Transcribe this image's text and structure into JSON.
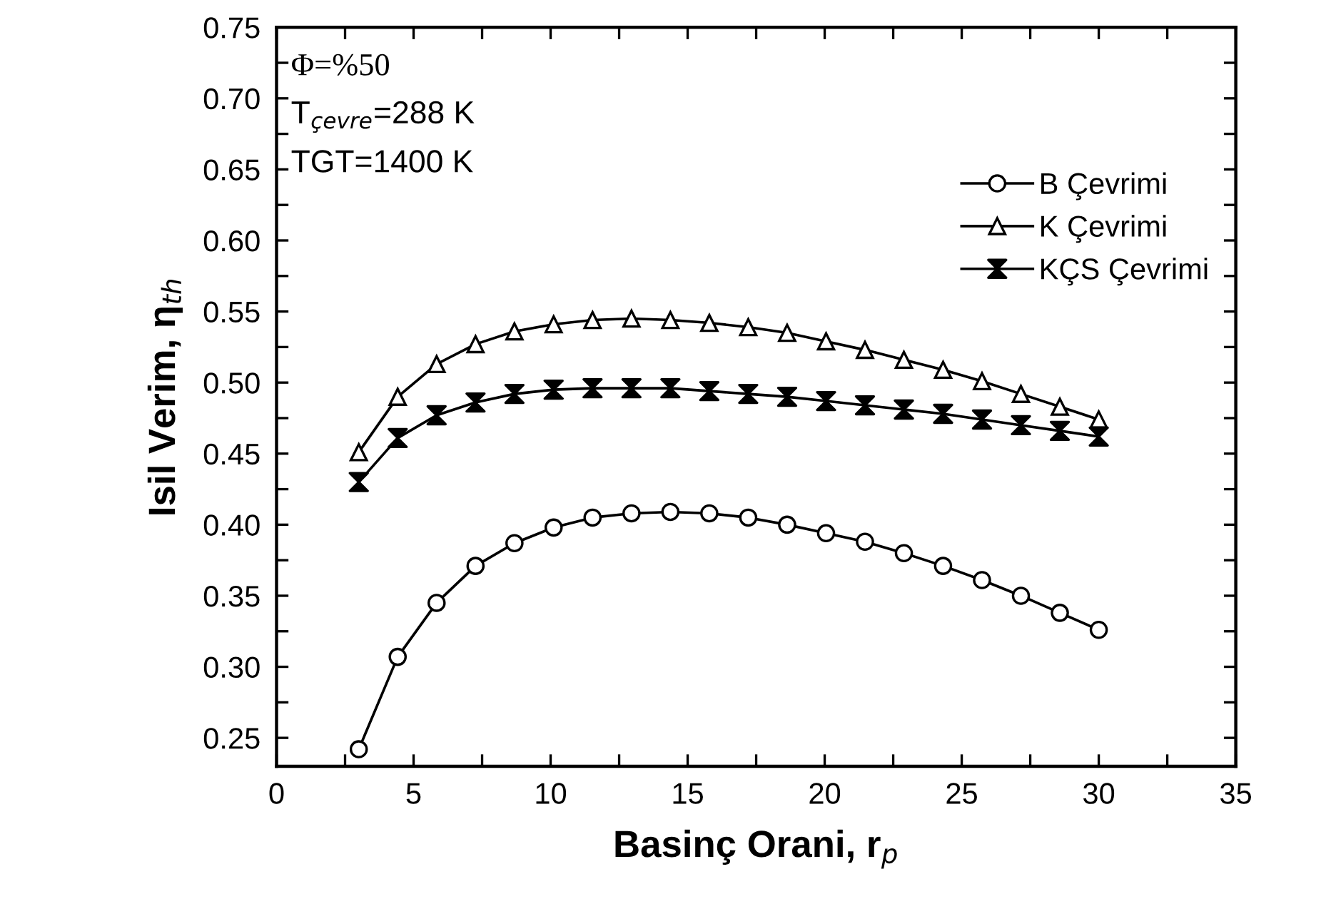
{
  "chart_data": {
    "type": "line",
    "xlabel": "Basinç Orani, r$_{p}$",
    "ylabel": "Isil Verim, η$_{th}$",
    "annotations": [
      "Φ=%50",
      "T$_{çevre}$=288 K",
      "TGT=1400 K"
    ],
    "x": [
      3,
      4.42,
      5.84,
      7.26,
      8.68,
      10.11,
      11.53,
      12.95,
      14.37,
      15.79,
      17.21,
      18.63,
      20.05,
      21.47,
      22.89,
      24.32,
      25.74,
      27.16,
      28.58,
      30
    ],
    "series": [
      {
        "name": "B Çevrimi",
        "color": "#000000",
        "marker": "circle",
        "values": [
          0.242,
          0.307,
          0.345,
          0.371,
          0.387,
          0.398,
          0.405,
          0.408,
          0.409,
          0.408,
          0.405,
          0.4,
          0.394,
          0.388,
          0.38,
          0.371,
          0.361,
          0.35,
          0.338,
          0.326
        ]
      },
      {
        "name": "K Çevrimi",
        "color": "#000000",
        "marker": "triangle",
        "values": [
          0.451,
          0.49,
          0.513,
          0.527,
          0.536,
          0.541,
          0.544,
          0.545,
          0.544,
          0.542,
          0.539,
          0.535,
          0.529,
          0.523,
          0.516,
          0.509,
          0.501,
          0.492,
          0.483,
          0.474
        ]
      },
      {
        "name": "KÇS Çevrimi",
        "color": "#000000",
        "marker": "cross",
        "values": [
          0.43,
          0.461,
          0.477,
          0.486,
          0.492,
          0.495,
          0.496,
          0.496,
          0.496,
          0.494,
          0.492,
          0.49,
          0.487,
          0.484,
          0.481,
          0.478,
          0.474,
          0.47,
          0.466,
          0.462
        ]
      }
    ],
    "xlim": [
      0,
      35
    ],
    "xticks": [
      0,
      {
        "value": 2.5,
        "label": null
      },
      5,
      {
        "value": 7.5,
        "label": null
      },
      10,
      {
        "value": 12.5,
        "label": null
      },
      15,
      {
        "value": 17.5,
        "label": null
      },
      20,
      {
        "value": 22.5,
        "label": null
      },
      25,
      {
        "value": 27.5,
        "label": null
      },
      30,
      {
        "value": 32.5,
        "label": null
      },
      35
    ],
    "ylim": [
      0.23,
      0.75
    ],
    "yticks": [
      {
        "value": 0.25,
        "label": "0.25"
      },
      {
        "value": 0.275,
        "label": null
      },
      {
        "value": 0.3,
        "label": "0.30"
      },
      {
        "value": 0.325,
        "label": null
      },
      {
        "value": 0.35,
        "label": "0.35"
      },
      {
        "value": 0.375,
        "label": null
      },
      {
        "value": 0.4,
        "label": "0.40"
      },
      {
        "value": 0.425,
        "label": null
      },
      {
        "value": 0.45,
        "label": "0.45"
      },
      {
        "value": 0.475,
        "label": null
      },
      {
        "value": 0.5,
        "label": "0.50"
      },
      {
        "value": 0.525,
        "label": null
      },
      {
        "value": 0.55,
        "label": "0.55"
      },
      {
        "value": 0.575,
        "label": null
      },
      {
        "value": 0.6,
        "label": "0.60"
      },
      {
        "value": 0.625,
        "label": null
      },
      {
        "value": 0.65,
        "label": "0.65"
      },
      {
        "value": 0.675,
        "label": null
      },
      {
        "value": 0.7,
        "label": "0.70"
      },
      {
        "value": 0.725,
        "label": null
      },
      {
        "value": 0.75,
        "label": "0.75"
      }
    ],
    "grid": false,
    "legend": "top right",
    "line_style": "solid"
  }
}
